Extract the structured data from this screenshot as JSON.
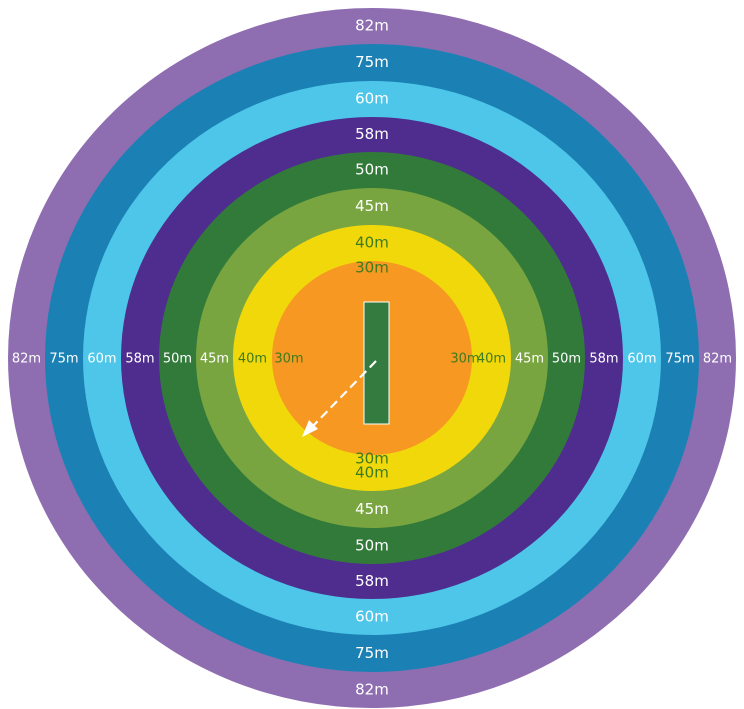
{
  "diagram": {
    "rings": [
      {
        "label": "82m",
        "color": "#8e6eb1",
        "text_color": "#ffffff"
      },
      {
        "label": "75m",
        "color": "#1b81b4",
        "text_color": "#ffffff"
      },
      {
        "label": "60m",
        "color": "#4dc6ea",
        "text_color": "#ffffff"
      },
      {
        "label": "58m",
        "color": "#4f2d8e",
        "text_color": "#ffffff"
      },
      {
        "label": "50m",
        "color": "#327a3a",
        "text_color": "#ffffff"
      },
      {
        "label": "45m",
        "color": "#79a540",
        "text_color": "#ffffff"
      },
      {
        "label": "40m",
        "color": "#f1d80b",
        "text_color": "#3e7b1e"
      },
      {
        "label": "30m",
        "color": "#f69822",
        "text_color": "#3e7b1e"
      }
    ],
    "pitch_color": "#347b3f",
    "pitch_border": "#ffffff",
    "arrow_color": "#ffffff",
    "arrow_icon": "dashed-arrow-icon"
  }
}
